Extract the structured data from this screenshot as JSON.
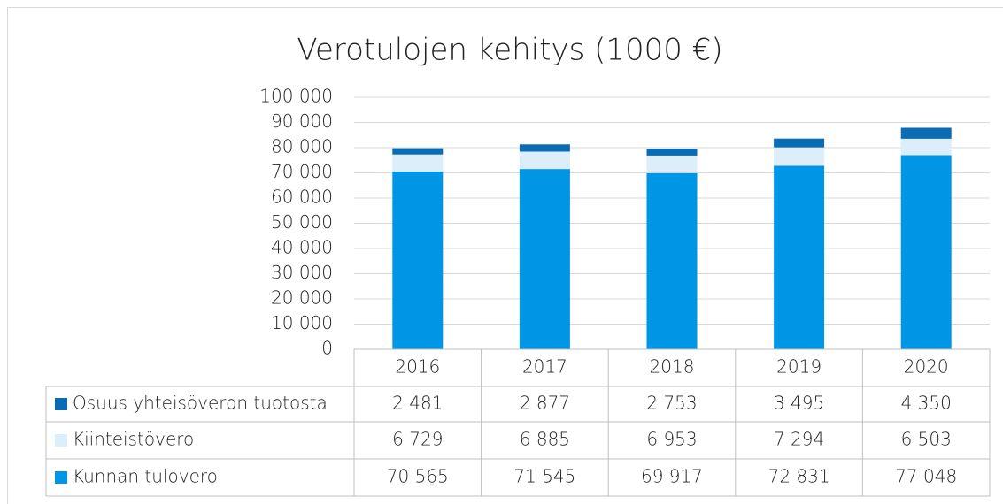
{
  "chart_data": {
    "type": "bar",
    "stacked": true,
    "title": "Verotulojen kehitys (1000 €)",
    "categories": [
      "2016",
      "2017",
      "2018",
      "2019",
      "2020"
    ],
    "series": [
      {
        "name": "Osuus yhteisöveron tuotosta",
        "color": "#0a6db3",
        "values": [
          2481,
          2877,
          2753,
          3495,
          4350
        ],
        "value_labels": [
          "2 481",
          "2 877",
          "2 753",
          "3 495",
          "4 350"
        ]
      },
      {
        "name": "Kiinteistövero",
        "color": "#ddeefb",
        "values": [
          6729,
          6885,
          6953,
          7294,
          6503
        ],
        "value_labels": [
          "6 729",
          "6 885",
          "6 953",
          "7 294",
          "6 503"
        ]
      },
      {
        "name": "Kunnan tulovero",
        "color": "#0096e6",
        "values": [
          70565,
          71545,
          69917,
          72831,
          77048
        ],
        "value_labels": [
          "70 565",
          "71 545",
          "69 917",
          "72 831",
          "77 048"
        ]
      }
    ],
    "ylim": [
      0,
      100000
    ],
    "yticks": [
      0,
      {
        "value": 10000,
        "label": "10 000"
      },
      {
        "value": 20000,
        "label": "20 000"
      },
      {
        "value": 30000,
        "label": "30 000"
      },
      {
        "value": 40000,
        "label": "40 000"
      },
      {
        "value": 50000,
        "label": "50 000"
      },
      {
        "value": 60000,
        "label": "60 000"
      },
      {
        "value": 70000,
        "label": "70 000"
      },
      {
        "value": 80000,
        "label": "80 000"
      },
      {
        "value": 90000,
        "label": "90 000"
      },
      {
        "value": 100000,
        "label": "100 000"
      }
    ],
    "grid": true
  }
}
